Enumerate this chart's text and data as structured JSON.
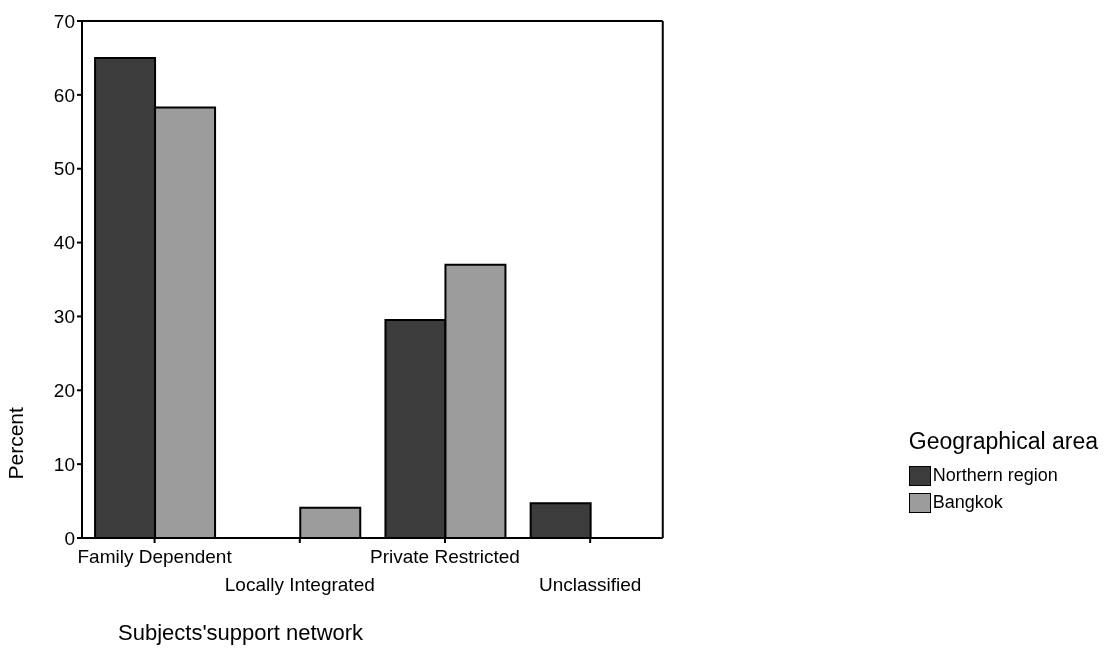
{
  "chart_data": {
    "type": "bar",
    "categories": [
      "Family Dependent",
      "Locally Integrated",
      "Private Restricted",
      "Unclassified"
    ],
    "series": [
      {
        "name": "Northern region",
        "color": "#3c3c3c",
        "values": [
          65,
          null,
          29.5,
          4.7
        ]
      },
      {
        "name": "Bangkok",
        "color": "#9c9c9c",
        "values": [
          58.3,
          4.1,
          37,
          null
        ]
      }
    ],
    "xlabel": "Subjects'support network",
    "ylabel": "Percent",
    "legend_title": "Geographical area",
    "ylim": [
      0,
      70
    ],
    "yticks": [
      0,
      10,
      20,
      30,
      40,
      50,
      60,
      70
    ],
    "grid": false,
    "legend": "right"
  }
}
